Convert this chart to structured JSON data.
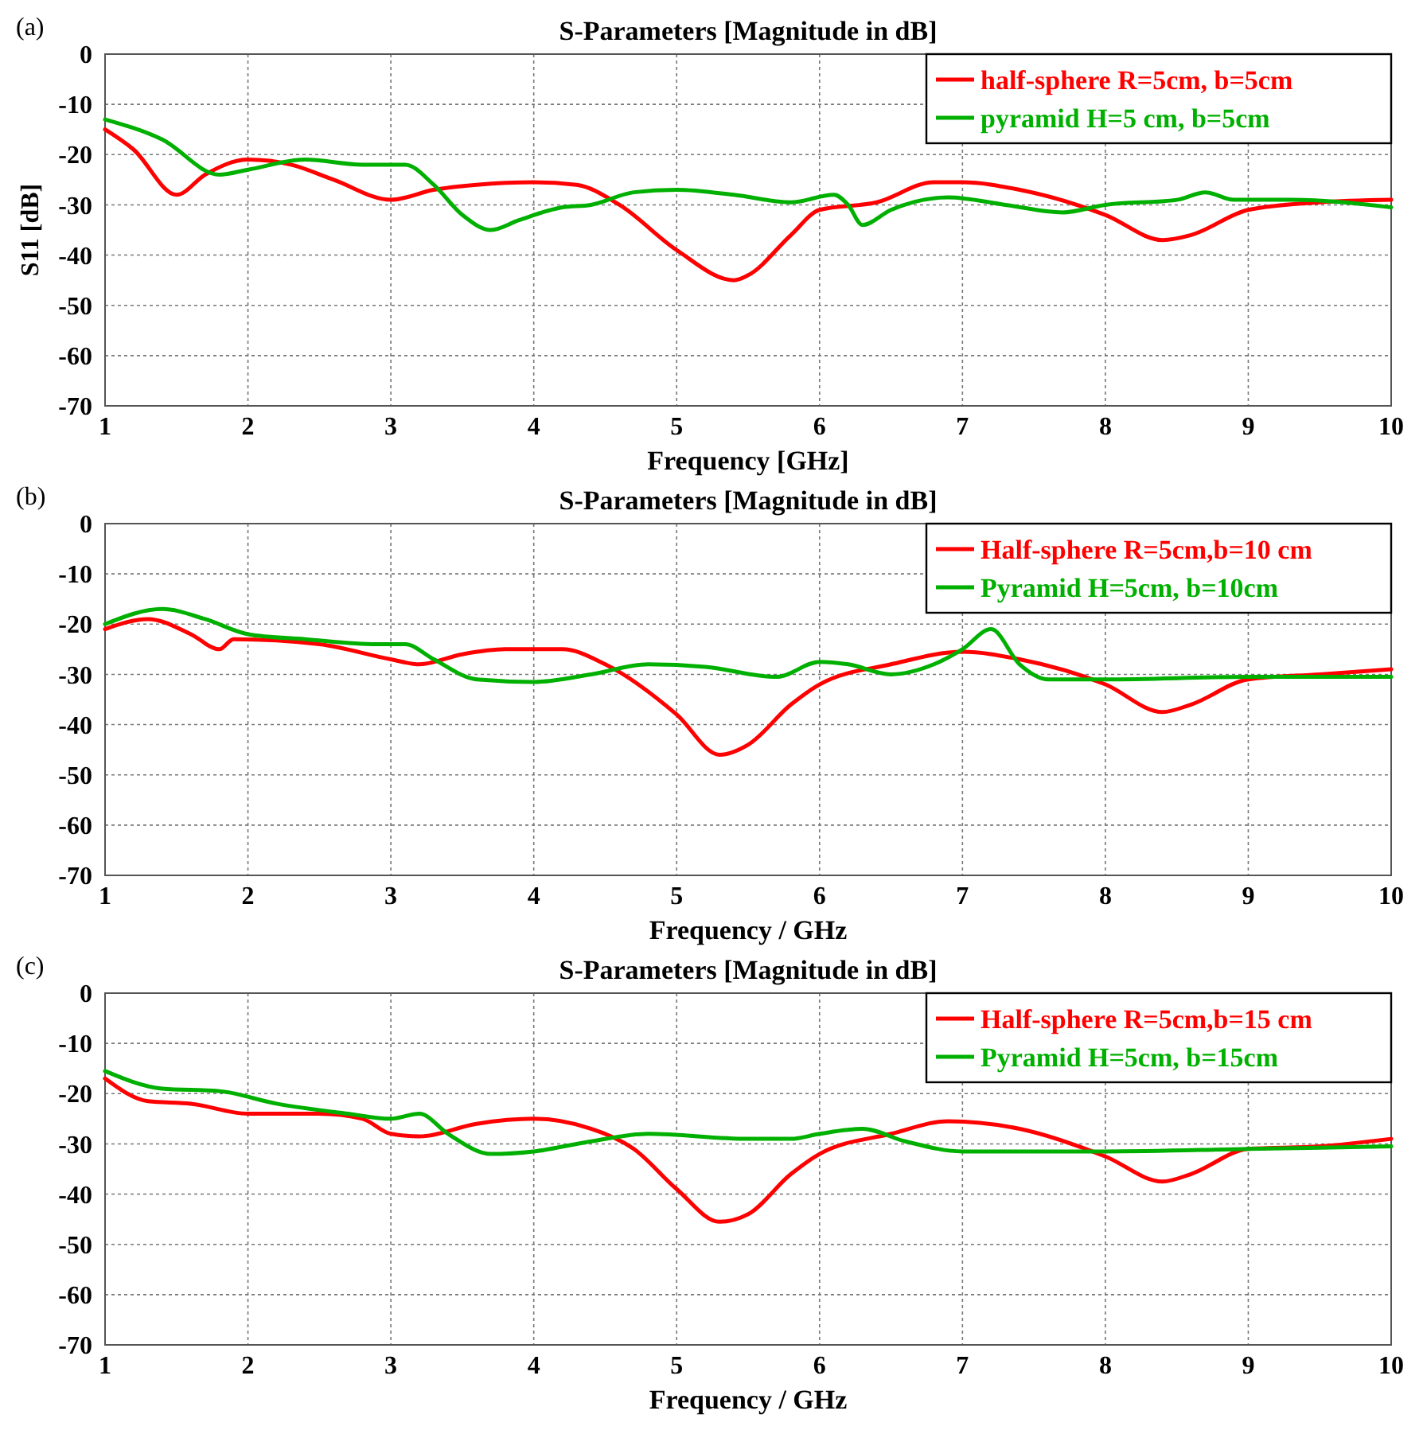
{
  "chart_data": [
    {
      "type": "line",
      "title": "S-Parameters [Magnitude in dB]",
      "xlabel": "Frequency [GHz]",
      "ylabel": "S11 [dB]",
      "annotations": [
        "(a)"
      ],
      "xlim": [
        1,
        10
      ],
      "xticks": [
        1,
        2,
        3,
        4,
        5,
        6,
        7,
        8,
        9,
        10
      ],
      "ylim": [
        -70,
        0
      ],
      "yticks": [
        -70,
        -60,
        -50,
        -40,
        -30,
        -20,
        -10,
        0
      ],
      "grid": true,
      "legend": "top right",
      "marker": "none",
      "line_style": "solid",
      "series": [
        {
          "name": "half-sphere R=5cm, b=5cm",
          "color": "#ff0000",
          "x": [
            1,
            1.2,
            1.5,
            1.7,
            2,
            2.3,
            2.6,
            3,
            3.3,
            3.6,
            4,
            4.3,
            4.6,
            5,
            5.4,
            5.5,
            5.8,
            6,
            6.4,
            6.8,
            7,
            7.4,
            8,
            8.4,
            8.6,
            9,
            9.5,
            10
          ],
          "values": [
            -15,
            -19,
            -28,
            -24,
            -21,
            -22,
            -25,
            -29,
            -27,
            -26,
            -25.5,
            -26,
            -30,
            -39,
            -45,
            -44,
            -36,
            -31,
            -29.5,
            -25.5,
            -25.5,
            -27,
            -32,
            -37,
            -36,
            -31,
            -29.5,
            -29
          ]
        },
        {
          "name": "pyramid H=5 cm, b=5cm",
          "color": "#00b000",
          "x": [
            1,
            1.4,
            1.8,
            2,
            2.4,
            2.8,
            3.1,
            3.3,
            3.5,
            3.7,
            3.9,
            4.2,
            4.4,
            4.7,
            5,
            5.4,
            5.8,
            6.1,
            6.2,
            6.3,
            6.5,
            6.9,
            7.3,
            7.7,
            8,
            8.5,
            8.7,
            8.9,
            9.3,
            10
          ],
          "values": [
            -13,
            -17,
            -24,
            -23,
            -21,
            -22,
            -22,
            -26,
            -32,
            -35,
            -33,
            -30.5,
            -30,
            -27.5,
            -27,
            -28,
            -29.5,
            -28,
            -30,
            -34,
            -31,
            -28.5,
            -30,
            -31.5,
            -30,
            -29,
            -27.5,
            -29,
            -29,
            -30.5
          ]
        }
      ]
    },
    {
      "type": "line",
      "title": "S-Parameters [Magnitude in dB]",
      "xlabel": "Frequency / GHz",
      "annotations": [
        "(b)"
      ],
      "xlim": [
        1,
        10
      ],
      "xticks": [
        1,
        2,
        3,
        4,
        5,
        6,
        7,
        8,
        9,
        10
      ],
      "ylim": [
        -70,
        0
      ],
      "yticks": [
        -70,
        -60,
        -50,
        -40,
        -30,
        -20,
        -10,
        0
      ],
      "grid": true,
      "legend": "top right",
      "marker": "none",
      "line_style": "solid",
      "series": [
        {
          "name": "Half-sphere R=5cm,b=10 cm",
          "color": "#ff0000",
          "x": [
            1,
            1.3,
            1.6,
            1.8,
            1.9,
            2.5,
            3,
            3.2,
            3.5,
            3.8,
            4.2,
            4.5,
            5,
            5.3,
            5.5,
            5.8,
            6,
            6.5,
            7,
            7.4,
            8,
            8.4,
            8.6,
            9,
            9.5,
            10
          ],
          "values": [
            -21,
            -19,
            -22,
            -25,
            -23,
            -24,
            -27,
            -28,
            -26,
            -25,
            -25,
            -28,
            -38,
            -46,
            -44,
            -36,
            -32,
            -28,
            -25.5,
            -27,
            -32,
            -37.5,
            -36,
            -31,
            -30,
            -29
          ]
        },
        {
          "name": "Pyramid H=5cm, b=10cm",
          "color": "#00b000",
          "x": [
            1,
            1.4,
            1.7,
            2,
            2.4,
            2.9,
            3.1,
            3.3,
            3.6,
            4,
            4.4,
            4.8,
            5.2,
            5.7,
            6,
            6.2,
            6.5,
            6.8,
            7,
            7.2,
            7.4,
            7.6,
            8,
            9,
            10
          ],
          "values": [
            -20,
            -17,
            -19,
            -22,
            -23,
            -24,
            -24,
            -27,
            -31,
            -31.5,
            -30,
            -28,
            -28.5,
            -30.5,
            -27.5,
            -28,
            -30,
            -28,
            -25,
            -21,
            -28,
            -31,
            -31,
            -30.5,
            -30.5
          ]
        }
      ]
    },
    {
      "type": "line",
      "title": "S-Parameters [Magnitude in dB]",
      "xlabel": "Frequency / GHz",
      "annotations": [
        "(c)"
      ],
      "xlim": [
        1,
        10
      ],
      "xticks": [
        1,
        2,
        3,
        4,
        5,
        6,
        7,
        8,
        9,
        10
      ],
      "ylim": [
        -70,
        0
      ],
      "yticks": [
        -70,
        -60,
        -50,
        -40,
        -30,
        -20,
        -10,
        0
      ],
      "grid": true,
      "legend": "top right",
      "marker": "none",
      "line_style": "solid",
      "series": [
        {
          "name": "Half-sphere R=5cm,b=15 cm",
          "color": "#ff0000",
          "x": [
            1,
            1.3,
            1.6,
            2,
            2.5,
            2.8,
            3,
            3.2,
            3.6,
            4,
            4.4,
            4.7,
            5,
            5.3,
            5.5,
            5.8,
            6,
            6.5,
            6.9,
            7.4,
            8,
            8.4,
            8.6,
            9,
            9.5,
            10
          ],
          "values": [
            -17,
            -21.5,
            -22,
            -24,
            -24,
            -25,
            -28,
            -28.5,
            -26,
            -25,
            -27,
            -31,
            -39,
            -45.5,
            -44,
            -36,
            -32,
            -28,
            -25.5,
            -27,
            -32.5,
            -37.5,
            -36,
            -31,
            -30.5,
            -29
          ]
        },
        {
          "name": "Pyramid H=5cm, b=15cm",
          "color": "#00b000",
          "x": [
            1,
            1.4,
            1.8,
            2.2,
            2.7,
            3,
            3.2,
            3.4,
            3.7,
            4,
            4.4,
            4.8,
            5.5,
            5.8,
            6,
            6.3,
            6.6,
            7,
            8,
            9,
            10
          ],
          "values": [
            -15.5,
            -19,
            -19.5,
            -22,
            -24,
            -25,
            -24,
            -28,
            -32,
            -31.5,
            -29.5,
            -28,
            -29,
            -29,
            -28,
            -27,
            -29.5,
            -31.5,
            -31.5,
            -31,
            -30.5
          ]
        }
      ]
    }
  ]
}
